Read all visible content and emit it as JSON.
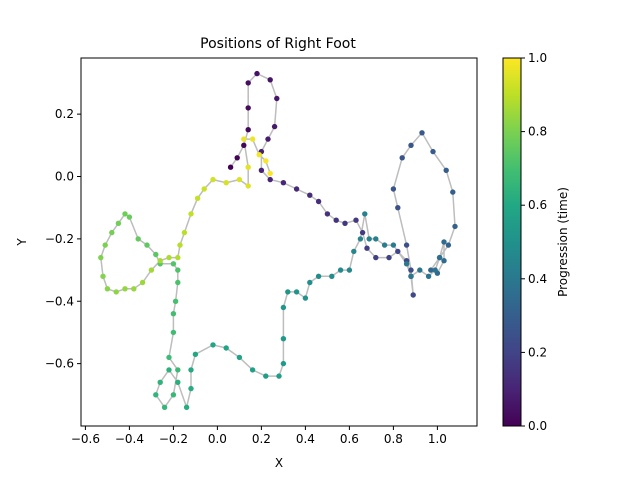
{
  "chart_data": {
    "type": "scatter",
    "title": "Positions of Right Foot",
    "xlabel": "X",
    "ylabel": "Y",
    "xlim": [
      -0.62,
      1.18
    ],
    "ylim": [
      -0.8,
      0.38
    ],
    "xticks": [
      -0.6,
      -0.4,
      -0.2,
      0.0,
      0.2,
      0.4,
      0.6,
      0.8,
      1.0
    ],
    "xtick_labels": [
      "−0.6",
      "−0.4",
      "−0.2",
      "0.0",
      "0.2",
      "0.4",
      "0.6",
      "0.8",
      "1.0"
    ],
    "yticks": [
      -0.6,
      -0.4,
      -0.2,
      0.0,
      0.2
    ],
    "ytick_labels": [
      "−0.6",
      "−0.4",
      "−0.2",
      "0.0",
      "0.2"
    ],
    "grid": false,
    "path_line_color": "#bdbdbd",
    "colormap": "viridis",
    "colorbar": {
      "label": "Progression (time)",
      "range": [
        0.0,
        1.0
      ],
      "ticks": [
        0.0,
        0.2,
        0.4,
        0.6,
        0.8,
        1.0
      ],
      "tick_labels": [
        "0.0",
        "0.2",
        "0.4",
        "0.6",
        "0.8",
        "1.0"
      ]
    },
    "anchors": [
      [
        0.06,
        0.03
      ],
      [
        0.09,
        0.06
      ],
      [
        0.12,
        0.1
      ],
      [
        0.14,
        0.15
      ],
      [
        0.14,
        0.22
      ],
      [
        0.14,
        0.3
      ],
      [
        0.18,
        0.33
      ],
      [
        0.24,
        0.31
      ],
      [
        0.27,
        0.25
      ],
      [
        0.26,
        0.16
      ],
      [
        0.23,
        0.12
      ],
      [
        0.2,
        0.08
      ],
      [
        0.2,
        0.02
      ],
      [
        0.24,
        -0.01
      ],
      [
        0.3,
        -0.02
      ],
      [
        0.36,
        -0.04
      ],
      [
        0.42,
        -0.06
      ],
      [
        0.46,
        -0.08
      ],
      [
        0.5,
        -0.12
      ],
      [
        0.54,
        -0.14
      ],
      [
        0.58,
        -0.15
      ],
      [
        0.63,
        -0.14
      ],
      [
        0.66,
        -0.18
      ],
      [
        0.68,
        -0.23
      ],
      [
        0.72,
        -0.26
      ],
      [
        0.78,
        -0.26
      ],
      [
        0.82,
        -0.24
      ],
      [
        0.86,
        -0.27
      ],
      [
        0.88,
        -0.32
      ],
      [
        0.89,
        -0.38
      ],
      [
        0.88,
        -0.3
      ],
      [
        0.86,
        -0.22
      ],
      [
        0.82,
        -0.1
      ],
      [
        0.8,
        -0.04
      ],
      [
        0.84,
        0.06
      ],
      [
        0.88,
        0.1
      ],
      [
        0.93,
        0.14
      ],
      [
        0.98,
        0.08
      ],
      [
        1.04,
        0.02
      ],
      [
        1.07,
        -0.05
      ],
      [
        1.08,
        -0.16
      ],
      [
        1.05,
        -0.22
      ],
      [
        1.01,
        -0.26
      ],
      [
        0.97,
        -0.3
      ],
      [
        1.0,
        -0.31
      ],
      [
        1.03,
        -0.27
      ],
      [
        1.03,
        -0.21
      ],
      [
        1.01,
        -0.26
      ],
      [
        0.99,
        -0.3
      ],
      [
        0.96,
        -0.32
      ],
      [
        0.92,
        -0.3
      ],
      [
        0.88,
        -0.32
      ],
      [
        0.86,
        -0.28
      ],
      [
        0.8,
        -0.22
      ],
      [
        0.76,
        -0.22
      ],
      [
        0.72,
        -0.2
      ],
      [
        0.69,
        -0.2
      ],
      [
        0.67,
        -0.12
      ],
      [
        0.65,
        -0.2
      ],
      [
        0.62,
        -0.24
      ],
      [
        0.6,
        -0.3
      ],
      [
        0.56,
        -0.3
      ],
      [
        0.52,
        -0.32
      ],
      [
        0.46,
        -0.32
      ],
      [
        0.42,
        -0.34
      ],
      [
        0.4,
        -0.39
      ],
      [
        0.36,
        -0.37
      ],
      [
        0.32,
        -0.37
      ],
      [
        0.3,
        -0.42
      ],
      [
        0.3,
        -0.52
      ],
      [
        0.3,
        -0.6
      ],
      [
        0.28,
        -0.64
      ],
      [
        0.22,
        -0.64
      ],
      [
        0.16,
        -0.62
      ],
      [
        0.1,
        -0.58
      ],
      [
        0.04,
        -0.55
      ],
      [
        -0.02,
        -0.54
      ],
      [
        -0.1,
        -0.57
      ],
      [
        -0.12,
        -0.62
      ],
      [
        -0.12,
        -0.68
      ],
      [
        -0.14,
        -0.74
      ],
      [
        -0.18,
        -0.66
      ],
      [
        -0.22,
        -0.62
      ],
      [
        -0.26,
        -0.66
      ],
      [
        -0.28,
        -0.7
      ],
      [
        -0.24,
        -0.74
      ],
      [
        -0.2,
        -0.7
      ],
      [
        -0.18,
        -0.62
      ],
      [
        -0.22,
        -0.58
      ],
      [
        -0.2,
        -0.5
      ],
      [
        -0.2,
        -0.44
      ],
      [
        -0.19,
        -0.4
      ],
      [
        -0.18,
        -0.34
      ],
      [
        -0.18,
        -0.3
      ],
      [
        -0.2,
        -0.28
      ],
      [
        -0.26,
        -0.28
      ],
      [
        -0.28,
        -0.25
      ],
      [
        -0.32,
        -0.22
      ],
      [
        -0.36,
        -0.2
      ],
      [
        -0.4,
        -0.13
      ],
      [
        -0.42,
        -0.12
      ],
      [
        -0.45,
        -0.15
      ],
      [
        -0.48,
        -0.18
      ],
      [
        -0.51,
        -0.22
      ],
      [
        -0.53,
        -0.26
      ],
      [
        -0.52,
        -0.32
      ],
      [
        -0.5,
        -0.36
      ],
      [
        -0.46,
        -0.37
      ],
      [
        -0.42,
        -0.36
      ],
      [
        -0.38,
        -0.36
      ],
      [
        -0.34,
        -0.34
      ],
      [
        -0.3,
        -0.3
      ],
      [
        -0.26,
        -0.27
      ],
      [
        -0.22,
        -0.26
      ],
      [
        -0.18,
        -0.26
      ],
      [
        -0.17,
        -0.22
      ],
      [
        -0.15,
        -0.18
      ],
      [
        -0.12,
        -0.12
      ],
      [
        -0.09,
        -0.07
      ],
      [
        -0.06,
        -0.04
      ],
      [
        -0.02,
        -0.01
      ],
      [
        0.04,
        -0.02
      ],
      [
        0.1,
        -0.01
      ],
      [
        0.14,
        -0.03
      ],
      [
        0.14,
        0.03
      ],
      [
        0.12,
        0.12
      ],
      [
        0.16,
        0.12
      ],
      [
        0.19,
        0.07
      ],
      [
        0.22,
        0.05
      ],
      [
        0.24,
        0.01
      ]
    ]
  }
}
